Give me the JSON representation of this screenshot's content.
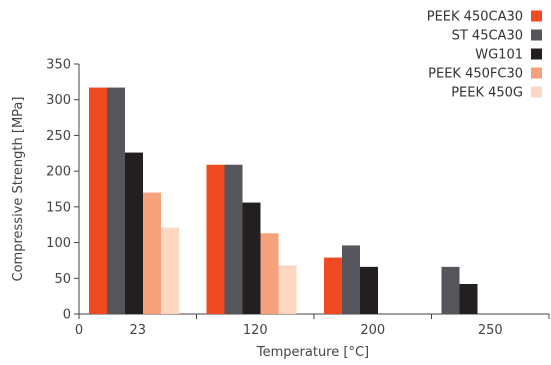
{
  "chart_data": {
    "type": "bar",
    "title": "",
    "xlabel": "Temperature [°C]",
    "ylabel": "Compressive Strength [MPa]",
    "categories": [
      "23",
      "120",
      "200",
      "250"
    ],
    "ylim": [
      0,
      350
    ],
    "yticks": [
      "0",
      "50",
      "100",
      "150",
      "200",
      "250",
      "300",
      "350"
    ],
    "x_origin_label": "0",
    "grid": false,
    "legend_position": "top-right",
    "series": [
      {
        "name": "PEEK 450CA30",
        "color": "#f04a22",
        "values": [
          317,
          209,
          79,
          null
        ]
      },
      {
        "name": "ST 45CA30",
        "color": "#55565b",
        "values": [
          317,
          209,
          96,
          66
        ]
      },
      {
        "name": "WG101",
        "color": "#231f20",
        "values": [
          226,
          156,
          66,
          42
        ]
      },
      {
        "name": "PEEK 450FC30",
        "color": "#f7a07c",
        "values": [
          170,
          113,
          null,
          null
        ]
      },
      {
        "name": "PEEK 450G",
        "color": "#fcd8c2",
        "values": [
          121,
          68,
          null,
          null
        ]
      }
    ]
  }
}
